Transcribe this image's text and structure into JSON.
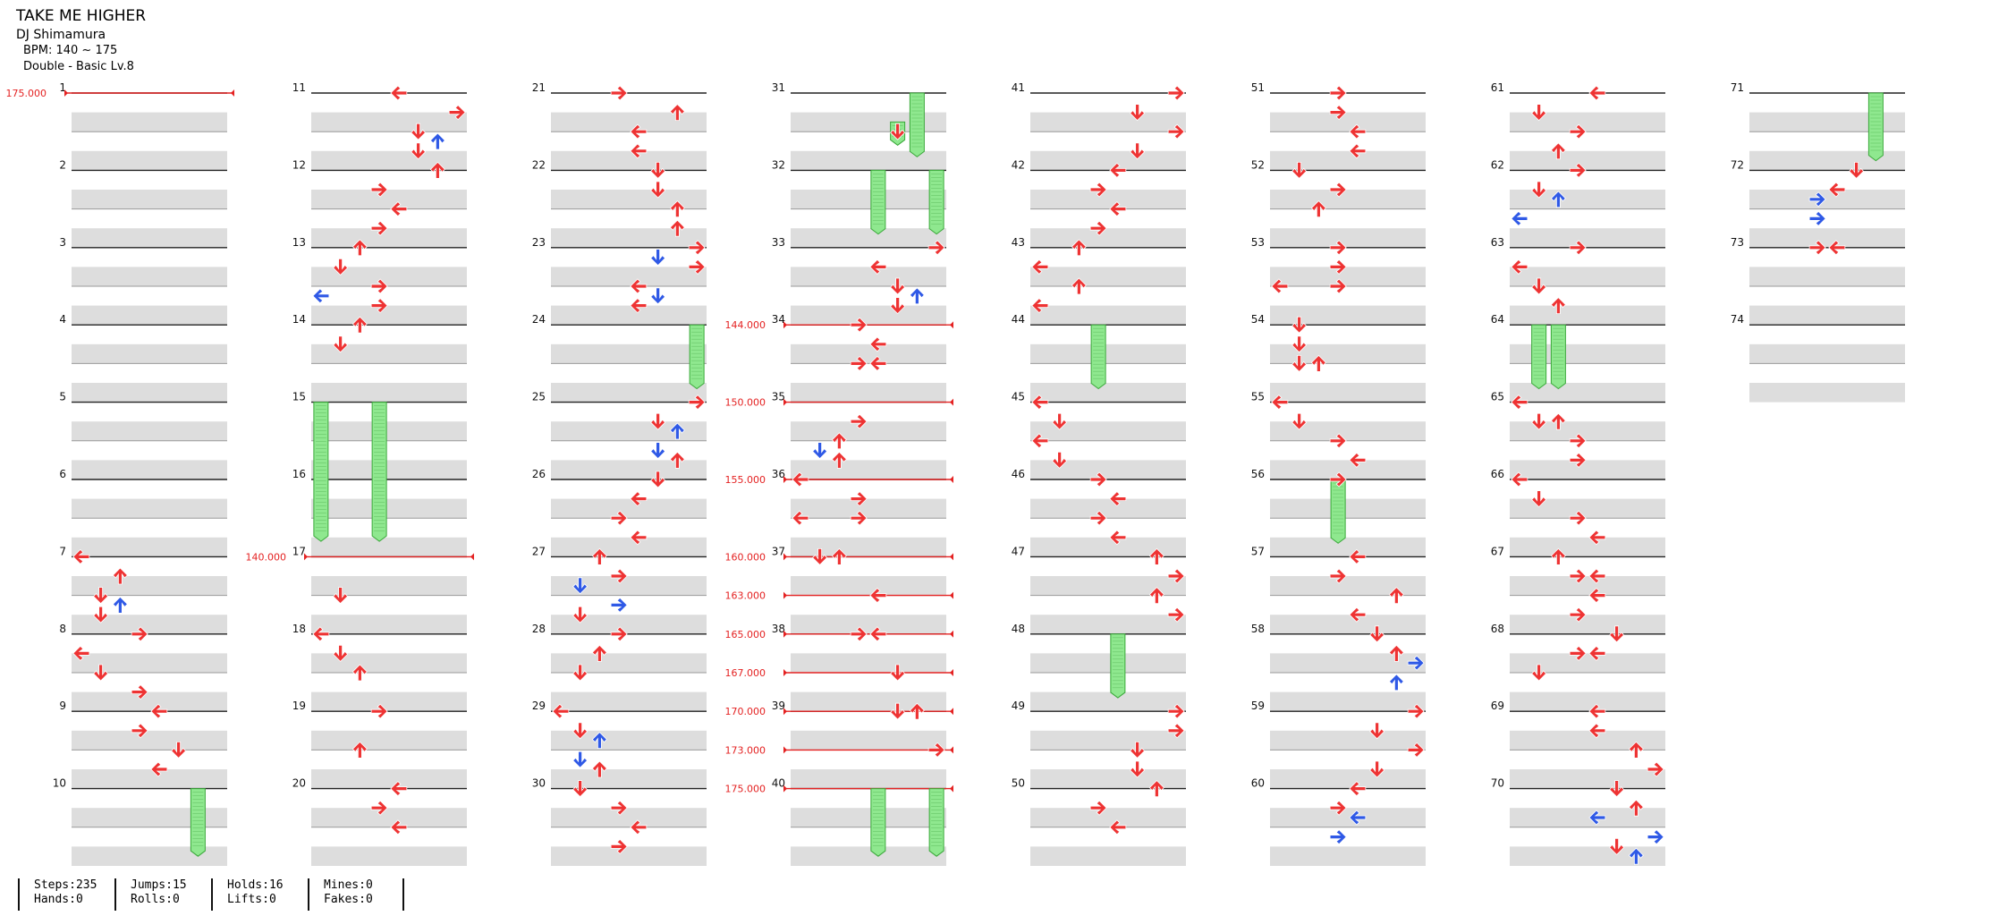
{
  "song": {
    "title": "TAKE ME HIGHER",
    "artist": "DJ Shimamura",
    "bpm": "BPM: 140 ~ 175",
    "chart": "Double - Basic  Lv.8"
  },
  "colors": {
    "tap": "#ee3333",
    "tap_alt": "#2f59e6",
    "hold": "#8fe88f",
    "hold_edge": "#3aa83a",
    "bpm": "#e42222",
    "stripe": "#dddddd"
  },
  "stats": [
    [
      "Steps:235",
      "Hands:0"
    ],
    [
      "Jumps:15",
      "Rolls:0"
    ],
    [
      "Holds:16",
      "Lifts:0"
    ],
    [
      "Mines:0",
      "Fakes:0"
    ]
  ],
  "chart_data": {
    "lanes": 8,
    "total_measures": 74,
    "bpm_changes": [
      {
        "measure": 1,
        "beat": 0,
        "label": "175.000"
      },
      {
        "measure": 17,
        "beat": 0,
        "label": "140.000"
      },
      {
        "measure": 34,
        "beat": 0,
        "label": "144.000"
      },
      {
        "measure": 35,
        "beat": 0,
        "label": "150.000"
      },
      {
        "measure": 36,
        "beat": 0,
        "label": "155.000"
      },
      {
        "measure": 37,
        "beat": 0,
        "label": "160.000"
      },
      {
        "measure": 37,
        "beat": 2,
        "label": "163.000"
      },
      {
        "measure": 38,
        "beat": 0,
        "label": "165.000"
      },
      {
        "measure": 38,
        "beat": 2,
        "label": "167.000"
      },
      {
        "measure": 39,
        "beat": 0,
        "label": "170.000"
      },
      {
        "measure": 39,
        "beat": 2,
        "label": "173.000"
      },
      {
        "measure": 40,
        "beat": 0,
        "label": "175.000"
      }
    ],
    "holds": [
      {
        "measure": 10,
        "beat": 0,
        "lane": 6,
        "beats": 3.5
      },
      {
        "measure": 15,
        "beat": 0,
        "lane": 0,
        "beats": 7.2
      },
      {
        "measure": 15,
        "beat": 0,
        "lane": 3,
        "beats": 7.2
      },
      {
        "measure": 24,
        "beat": 0,
        "lane": 7,
        "beats": 3.3
      },
      {
        "measure": 31,
        "beat": 1.5,
        "lane": 5,
        "beats": 1.2
      },
      {
        "measure": 31,
        "beat": 0,
        "lane": 6,
        "beats": 3.3
      },
      {
        "measure": 32,
        "beat": 0,
        "lane": 4,
        "beats": 3.3
      },
      {
        "measure": 32,
        "beat": 0,
        "lane": 7,
        "beats": 3.3
      },
      {
        "measure": 40,
        "beat": 0,
        "lane": 4,
        "beats": 3.5
      },
      {
        "measure": 40,
        "beat": 0,
        "lane": 7,
        "beats": 3.5
      },
      {
        "measure": 44,
        "beat": 0,
        "lane": 3,
        "beats": 3.3
      },
      {
        "measure": 48,
        "beat": 0,
        "lane": 4,
        "beats": 3.3
      },
      {
        "measure": 56,
        "beat": 0,
        "lane": 3,
        "beats": 3.3
      },
      {
        "measure": 64,
        "beat": 0,
        "lane": 1,
        "beats": 3.3
      },
      {
        "measure": 64,
        "beat": 0,
        "lane": 2,
        "beats": 3.3
      },
      {
        "measure": 71,
        "beat": 0,
        "lane": 6,
        "beats": 3.5
      }
    ],
    "notes": [
      {
        "m": 7,
        "b": 0,
        "l": 0
      },
      {
        "m": 7,
        "b": 1,
        "l": 2
      },
      {
        "m": 7,
        "b": 2,
        "l": 1
      },
      {
        "m": 7,
        "b": 2.5,
        "l": 2,
        "c": "blue"
      },
      {
        "m": 7,
        "b": 3,
        "l": 1
      },
      {
        "m": 8,
        "b": 0,
        "l": 3
      },
      {
        "m": 8,
        "b": 1,
        "l": 0
      },
      {
        "m": 8,
        "b": 2,
        "l": 1
      },
      {
        "m": 8,
        "b": 3,
        "l": 3
      },
      {
        "m": 9,
        "b": 0,
        "l": 4
      },
      {
        "m": 9,
        "b": 1,
        "l": 3
      },
      {
        "m": 9,
        "b": 2,
        "l": 5
      },
      {
        "m": 9,
        "b": 3,
        "l": 4
      },
      {
        "m": 11,
        "b": 0,
        "l": 4
      },
      {
        "m": 11,
        "b": 1,
        "l": 7
      },
      {
        "m": 11,
        "b": 2,
        "l": 5
      },
      {
        "m": 11,
        "b": 2.5,
        "l": 6,
        "c": "blue"
      },
      {
        "m": 11,
        "b": 3,
        "l": 5
      },
      {
        "m": 12,
        "b": 0,
        "l": 6
      },
      {
        "m": 12,
        "b": 1,
        "l": 3
      },
      {
        "m": 12,
        "b": 2,
        "l": 4
      },
      {
        "m": 12,
        "b": 3,
        "l": 3
      },
      {
        "m": 13,
        "b": 0,
        "l": 2
      },
      {
        "m": 13,
        "b": 1,
        "l": 1
      },
      {
        "m": 13,
        "b": 2,
        "l": 3
      },
      {
        "m": 13,
        "b": 2.5,
        "l": 0,
        "c": "blue"
      },
      {
        "m": 13,
        "b": 3,
        "l": 3
      },
      {
        "m": 14,
        "b": 0,
        "l": 2
      },
      {
        "m": 14,
        "b": 1,
        "l": 1
      },
      {
        "m": 17,
        "b": 2,
        "l": 1
      },
      {
        "m": 18,
        "b": 0,
        "l": 0
      },
      {
        "m": 18,
        "b": 1,
        "l": 1
      },
      {
        "m": 18,
        "b": 2,
        "l": 2
      },
      {
        "m": 19,
        "b": 0,
        "l": 3
      },
      {
        "m": 19,
        "b": 2,
        "l": 2
      },
      {
        "m": 20,
        "b": 0,
        "l": 4
      },
      {
        "m": 20,
        "b": 1,
        "l": 3
      },
      {
        "m": 20,
        "b": 2,
        "l": 4
      },
      {
        "m": 21,
        "b": 0,
        "l": 3
      },
      {
        "m": 21,
        "b": 1,
        "l": 6
      },
      {
        "m": 21,
        "b": 2,
        "l": 4
      },
      {
        "m": 21,
        "b": 3,
        "l": 4
      },
      {
        "m": 22,
        "b": 0,
        "l": 5
      },
      {
        "m": 22,
        "b": 1,
        "l": 5
      },
      {
        "m": 22,
        "b": 2,
        "l": 6
      },
      {
        "m": 22,
        "b": 3,
        "l": 6
      },
      {
        "m": 23,
        "b": 0,
        "l": 7
      },
      {
        "m": 23,
        "b": 0.5,
        "l": 5,
        "c": "blue"
      },
      {
        "m": 23,
        "b": 1,
        "l": 7
      },
      {
        "m": 23,
        "b": 2,
        "l": 4
      },
      {
        "m": 23,
        "b": 2.5,
        "l": 5,
        "c": "blue"
      },
      {
        "m": 23,
        "b": 3,
        "l": 4
      },
      {
        "m": 25,
        "b": 0,
        "l": 7
      },
      {
        "m": 25,
        "b": 1,
        "l": 5
      },
      {
        "m": 25,
        "b": 1.5,
        "l": 6,
        "c": "blue"
      },
      {
        "m": 25,
        "b": 2.5,
        "l": 5,
        "c": "blue"
      },
      {
        "m": 25,
        "b": 3,
        "l": 6
      },
      {
        "m": 26,
        "b": 0,
        "l": 5
      },
      {
        "m": 26,
        "b": 1,
        "l": 4
      },
      {
        "m": 26,
        "b": 2,
        "l": 3
      },
      {
        "m": 26,
        "b": 3,
        "l": 4
      },
      {
        "m": 27,
        "b": 0,
        "l": 2
      },
      {
        "m": 27,
        "b": 1,
        "l": 3
      },
      {
        "m": 27,
        "b": 1.5,
        "l": 1,
        "c": "blue"
      },
      {
        "m": 27,
        "b": 2.5,
        "l": 3,
        "c": "blue"
      },
      {
        "m": 27,
        "b": 3,
        "l": 1
      },
      {
        "m": 28,
        "b": 0,
        "l": 3
      },
      {
        "m": 28,
        "b": 1,
        "l": 2
      },
      {
        "m": 28,
        "b": 2,
        "l": 1
      },
      {
        "m": 29,
        "b": 0,
        "l": 0
      },
      {
        "m": 29,
        "b": 1,
        "l": 1
      },
      {
        "m": 29,
        "b": 1.5,
        "l": 2,
        "c": "blue"
      },
      {
        "m": 29,
        "b": 2.5,
        "l": 1,
        "c": "blue"
      },
      {
        "m": 29,
        "b": 3,
        "l": 2
      },
      {
        "m": 30,
        "b": 0,
        "l": 1
      },
      {
        "m": 30,
        "b": 1,
        "l": 3
      },
      {
        "m": 30,
        "b": 2,
        "l": 4
      },
      {
        "m": 30,
        "b": 3,
        "l": 3
      },
      {
        "m": 31,
        "b": 2,
        "l": 5
      },
      {
        "m": 33,
        "b": 0,
        "l": 7
      },
      {
        "m": 33,
        "b": 1,
        "l": 4
      },
      {
        "m": 33,
        "b": 2,
        "l": 5
      },
      {
        "m": 33,
        "b": 2.5,
        "l": 6,
        "c": "blue"
      },
      {
        "m": 33,
        "b": 3,
        "l": 5
      },
      {
        "m": 34,
        "b": 0,
        "l": 3
      },
      {
        "m": 34,
        "b": 1,
        "l": 4
      },
      {
        "m": 34,
        "b": 2,
        "l": 3
      },
      {
        "m": 34,
        "b": 2,
        "l": 4
      },
      {
        "m": 35,
        "b": 1,
        "l": 3
      },
      {
        "m": 35,
        "b": 2,
        "l": 2
      },
      {
        "m": 35,
        "b": 2.5,
        "l": 1,
        "c": "blue"
      },
      {
        "m": 35,
        "b": 3,
        "l": 2
      },
      {
        "m": 36,
        "b": 0,
        "l": 0
      },
      {
        "m": 36,
        "b": 1,
        "l": 3
      },
      {
        "m": 36,
        "b": 2,
        "l": 0
      },
      {
        "m": 36,
        "b": 2,
        "l": 3
      },
      {
        "m": 37,
        "b": 0,
        "l": 1
      },
      {
        "m": 37,
        "b": 0,
        "l": 2
      },
      {
        "m": 37,
        "b": 2,
        "l": 4
      },
      {
        "m": 38,
        "b": 0,
        "l": 3
      },
      {
        "m": 38,
        "b": 0,
        "l": 4
      },
      {
        "m": 38,
        "b": 2,
        "l": 5
      },
      {
        "m": 39,
        "b": 0,
        "l": 5
      },
      {
        "m": 39,
        "b": 0,
        "l": 6
      },
      {
        "m": 39,
        "b": 2,
        "l": 7
      },
      {
        "m": 41,
        "b": 0,
        "l": 7
      },
      {
        "m": 41,
        "b": 1,
        "l": 5
      },
      {
        "m": 41,
        "b": 2,
        "l": 7
      },
      {
        "m": 41,
        "b": 3,
        "l": 5
      },
      {
        "m": 42,
        "b": 0,
        "l": 4
      },
      {
        "m": 42,
        "b": 1,
        "l": 3
      },
      {
        "m": 42,
        "b": 2,
        "l": 4
      },
      {
        "m": 42,
        "b": 3,
        "l": 3
      },
      {
        "m": 43,
        "b": 0,
        "l": 2
      },
      {
        "m": 43,
        "b": 1,
        "l": 0
      },
      {
        "m": 43,
        "b": 2,
        "l": 2
      },
      {
        "m": 43,
        "b": 3,
        "l": 0
      },
      {
        "m": 45,
        "b": 0,
        "l": 0
      },
      {
        "m": 45,
        "b": 1,
        "l": 1
      },
      {
        "m": 45,
        "b": 2,
        "l": 0
      },
      {
        "m": 45,
        "b": 3,
        "l": 1
      },
      {
        "m": 46,
        "b": 0,
        "l": 3
      },
      {
        "m": 46,
        "b": 1,
        "l": 4
      },
      {
        "m": 46,
        "b": 2,
        "l": 3
      },
      {
        "m": 46,
        "b": 3,
        "l": 4
      },
      {
        "m": 47,
        "b": 0,
        "l": 6
      },
      {
        "m": 47,
        "b": 1,
        "l": 7
      },
      {
        "m": 47,
        "b": 2,
        "l": 6
      },
      {
        "m": 47,
        "b": 3,
        "l": 7
      },
      {
        "m": 49,
        "b": 0,
        "l": 7
      },
      {
        "m": 49,
        "b": 1,
        "l": 7
      },
      {
        "m": 49,
        "b": 2,
        "l": 5
      },
      {
        "m": 49,
        "b": 3,
        "l": 5
      },
      {
        "m": 50,
        "b": 0,
        "l": 6
      },
      {
        "m": 50,
        "b": 1,
        "l": 3
      },
      {
        "m": 50,
        "b": 2,
        "l": 4
      },
      {
        "m": 51,
        "b": 0,
        "l": 3
      },
      {
        "m": 51,
        "b": 1,
        "l": 3
      },
      {
        "m": 51,
        "b": 2,
        "l": 4
      },
      {
        "m": 51,
        "b": 3,
        "l": 4
      },
      {
        "m": 52,
        "b": 0,
        "l": 1
      },
      {
        "m": 52,
        "b": 1,
        "l": 3
      },
      {
        "m": 52,
        "b": 2,
        "l": 2
      },
      {
        "m": 53,
        "b": 0,
        "l": 3
      },
      {
        "m": 53,
        "b": 1,
        "l": 3
      },
      {
        "m": 53,
        "b": 2,
        "l": 0
      },
      {
        "m": 53,
        "b": 2,
        "l": 3
      },
      {
        "m": 54,
        "b": 0,
        "l": 1
      },
      {
        "m": 54,
        "b": 1,
        "l": 1
      },
      {
        "m": 54,
        "b": 2,
        "l": 1
      },
      {
        "m": 54,
        "b": 2,
        "l": 2
      },
      {
        "m": 55,
        "b": 0,
        "l": 0
      },
      {
        "m": 55,
        "b": 1,
        "l": 1
      },
      {
        "m": 55,
        "b": 2,
        "l": 3
      },
      {
        "m": 55,
        "b": 3,
        "l": 4
      },
      {
        "m": 56,
        "b": 0,
        "l": 3
      },
      {
        "m": 57,
        "b": 0,
        "l": 4
      },
      {
        "m": 57,
        "b": 1,
        "l": 3
      },
      {
        "m": 57,
        "b": 2,
        "l": 6
      },
      {
        "m": 57,
        "b": 3,
        "l": 4
      },
      {
        "m": 58,
        "b": 0,
        "l": 5
      },
      {
        "m": 58,
        "b": 1,
        "l": 6
      },
      {
        "m": 58,
        "b": 1.5,
        "l": 7,
        "c": "blue"
      },
      {
        "m": 58,
        "b": 2.5,
        "l": 6,
        "c": "blue"
      },
      {
        "m": 59,
        "b": 0,
        "l": 7
      },
      {
        "m": 59,
        "b": 1,
        "l": 5
      },
      {
        "m": 59,
        "b": 2,
        "l": 7
      },
      {
        "m": 59,
        "b": 3,
        "l": 5
      },
      {
        "m": 60,
        "b": 0,
        "l": 4
      },
      {
        "m": 60,
        "b": 1,
        "l": 3
      },
      {
        "m": 60,
        "b": 1.5,
        "l": 4,
        "c": "blue"
      },
      {
        "m": 60,
        "b": 2.5,
        "l": 3,
        "c": "blue"
      },
      {
        "m": 61,
        "b": 0,
        "l": 4
      },
      {
        "m": 61,
        "b": 1,
        "l": 1
      },
      {
        "m": 61,
        "b": 2,
        "l": 3
      },
      {
        "m": 61,
        "b": 3,
        "l": 2
      },
      {
        "m": 62,
        "b": 0,
        "l": 3
      },
      {
        "m": 62,
        "b": 1,
        "l": 1
      },
      {
        "m": 62,
        "b": 1.5,
        "l": 2,
        "c": "blue"
      },
      {
        "m": 62,
        "b": 2.5,
        "l": 0,
        "c": "blue"
      },
      {
        "m": 63,
        "b": 0,
        "l": 3
      },
      {
        "m": 63,
        "b": 1,
        "l": 0
      },
      {
        "m": 63,
        "b": 2,
        "l": 1
      },
      {
        "m": 63,
        "b": 3,
        "l": 2
      },
      {
        "m": 65,
        "b": 0,
        "l": 0
      },
      {
        "m": 65,
        "b": 1,
        "l": 1
      },
      {
        "m": 65,
        "b": 1,
        "l": 2
      },
      {
        "m": 65,
        "b": 2,
        "l": 3
      },
      {
        "m": 65,
        "b": 3,
        "l": 3
      },
      {
        "m": 66,
        "b": 0,
        "l": 0
      },
      {
        "m": 66,
        "b": 1,
        "l": 1
      },
      {
        "m": 66,
        "b": 2,
        "l": 3
      },
      {
        "m": 66,
        "b": 3,
        "l": 4
      },
      {
        "m": 67,
        "b": 0,
        "l": 2
      },
      {
        "m": 67,
        "b": 1,
        "l": 3
      },
      {
        "m": 67,
        "b": 1,
        "l": 4
      },
      {
        "m": 67,
        "b": 2,
        "l": 4
      },
      {
        "m": 67,
        "b": 3,
        "l": 3
      },
      {
        "m": 68,
        "b": 0,
        "l": 5
      },
      {
        "m": 68,
        "b": 1,
        "l": 3
      },
      {
        "m": 68,
        "b": 1,
        "l": 4
      },
      {
        "m": 68,
        "b": 2,
        "l": 1
      },
      {
        "m": 69,
        "b": 0,
        "l": 4
      },
      {
        "m": 69,
        "b": 1,
        "l": 4
      },
      {
        "m": 69,
        "b": 2,
        "l": 6
      },
      {
        "m": 69,
        "b": 3,
        "l": 7
      },
      {
        "m": 70,
        "b": 0,
        "l": 5
      },
      {
        "m": 70,
        "b": 1,
        "l": 6
      },
      {
        "m": 70,
        "b": 1.5,
        "l": 4,
        "c": "blue"
      },
      {
        "m": 70,
        "b": 2.5,
        "l": 7,
        "c": "blue"
      },
      {
        "m": 70,
        "b": 3,
        "l": 5
      },
      {
        "m": 70,
        "b": 3.5,
        "l": 6,
        "c": "blue"
      },
      {
        "m": 72,
        "b": 0,
        "l": 5
      },
      {
        "m": 72,
        "b": 1,
        "l": 4
      },
      {
        "m": 72,
        "b": 1.5,
        "l": 3,
        "c": "blue"
      },
      {
        "m": 72,
        "b": 2.5,
        "l": 3,
        "c": "blue"
      },
      {
        "m": 73,
        "b": 0,
        "l": 3
      },
      {
        "m": 73,
        "b": 0,
        "l": 4
      }
    ]
  }
}
